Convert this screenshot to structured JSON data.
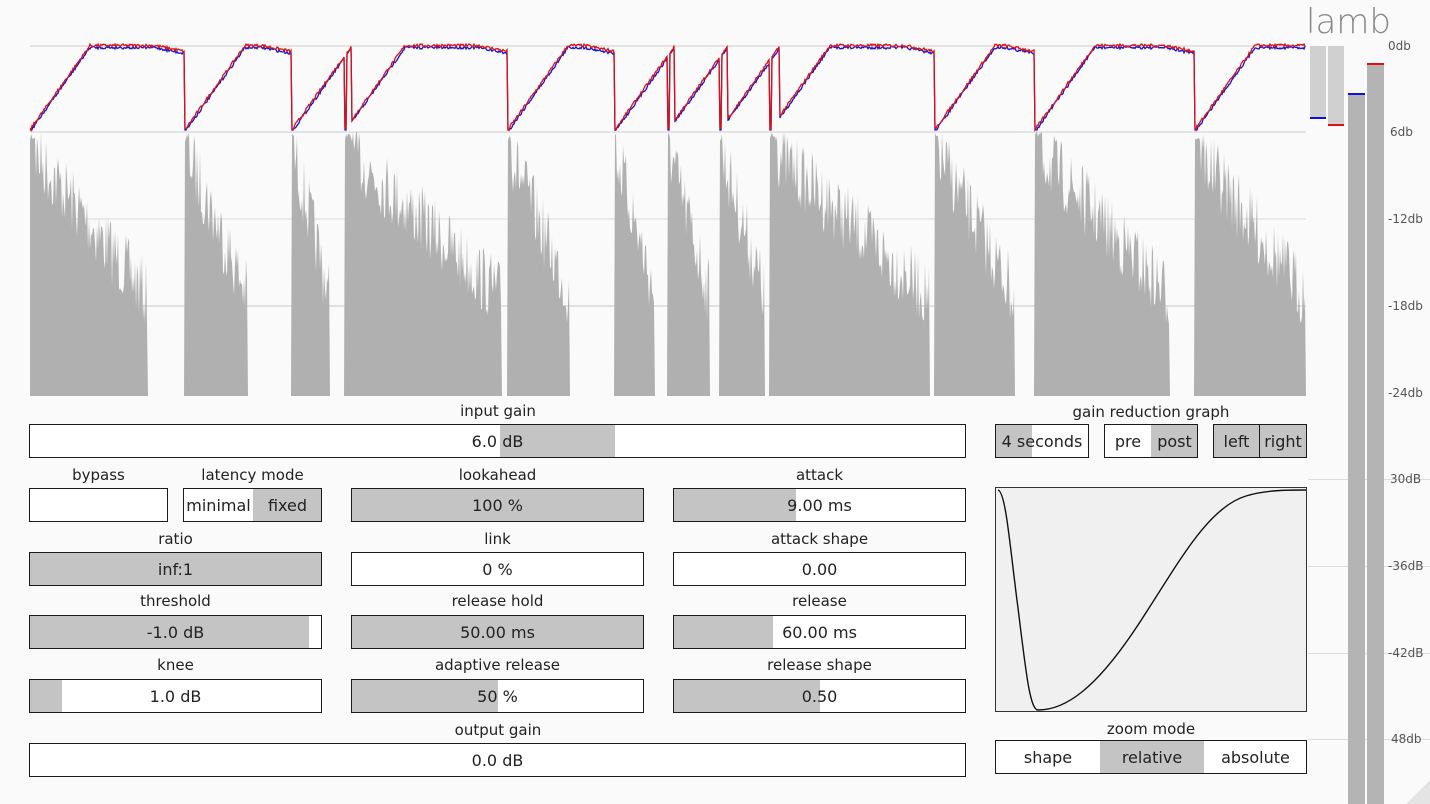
{
  "app": {
    "title": "lamb"
  },
  "scale_labels": [
    "0db",
    "6db",
    "-12db",
    "-18db",
    "-24db",
    "30dB",
    "-36dB",
    "-42dB",
    "48db"
  ],
  "colors": {
    "wave": "#b0b0b0",
    "left": "#1010dd",
    "right": "#dd1010",
    "fill": "#c4c4c4"
  },
  "controls": {
    "input_gain": {
      "label": "input gain",
      "value": "6.0 dB",
      "fraction": 0.62
    },
    "bypass": {
      "label": "bypass",
      "value": ""
    },
    "latency_mode": {
      "label": "latency mode",
      "options": [
        "minimal",
        "fixed"
      ],
      "selected": "fixed"
    },
    "lookahead": {
      "label": "lookahead",
      "value": "100 %",
      "fraction": 1.0
    },
    "attack": {
      "label": "attack",
      "value": "9.00 ms",
      "fraction": 0.42
    },
    "ratio": {
      "label": "ratio",
      "value": "inf:1",
      "fraction": 1.0
    },
    "link": {
      "label": "link",
      "value": "0 %",
      "fraction": 0.0
    },
    "attack_shape": {
      "label": "attack shape",
      "value": "0.00",
      "fraction": 0.0
    },
    "threshold": {
      "label": "threshold",
      "value": "-1.0 dB",
      "fraction": 0.96
    },
    "release_hold": {
      "label": "release hold",
      "value": "50.00 ms",
      "fraction": 1.0
    },
    "release": {
      "label": "release",
      "value": "60.00 ms",
      "fraction": 0.34
    },
    "knee": {
      "label": "knee",
      "value": "1.0 dB",
      "fraction": 0.11
    },
    "adaptive_release": {
      "label": "adaptive release",
      "value": "50 %",
      "fraction": 0.5
    },
    "release_shape": {
      "label": "release shape",
      "value": "0.50",
      "fraction": 0.5
    },
    "output_gain": {
      "label": "output gain",
      "value": "0.0 dB",
      "fraction": 0.0
    }
  },
  "graph": {
    "label": "gain reduction graph",
    "time": {
      "value": "4 seconds",
      "fraction": 0.38
    },
    "prepost": {
      "options": [
        "pre",
        "post"
      ],
      "selected": "post"
    },
    "channels": {
      "options": [
        "left",
        "right"
      ],
      "selected": [
        "left",
        "right"
      ]
    }
  },
  "zoom": {
    "label": "zoom mode",
    "options": [
      "shape",
      "relative",
      "absolute"
    ],
    "selected": "relative"
  }
}
